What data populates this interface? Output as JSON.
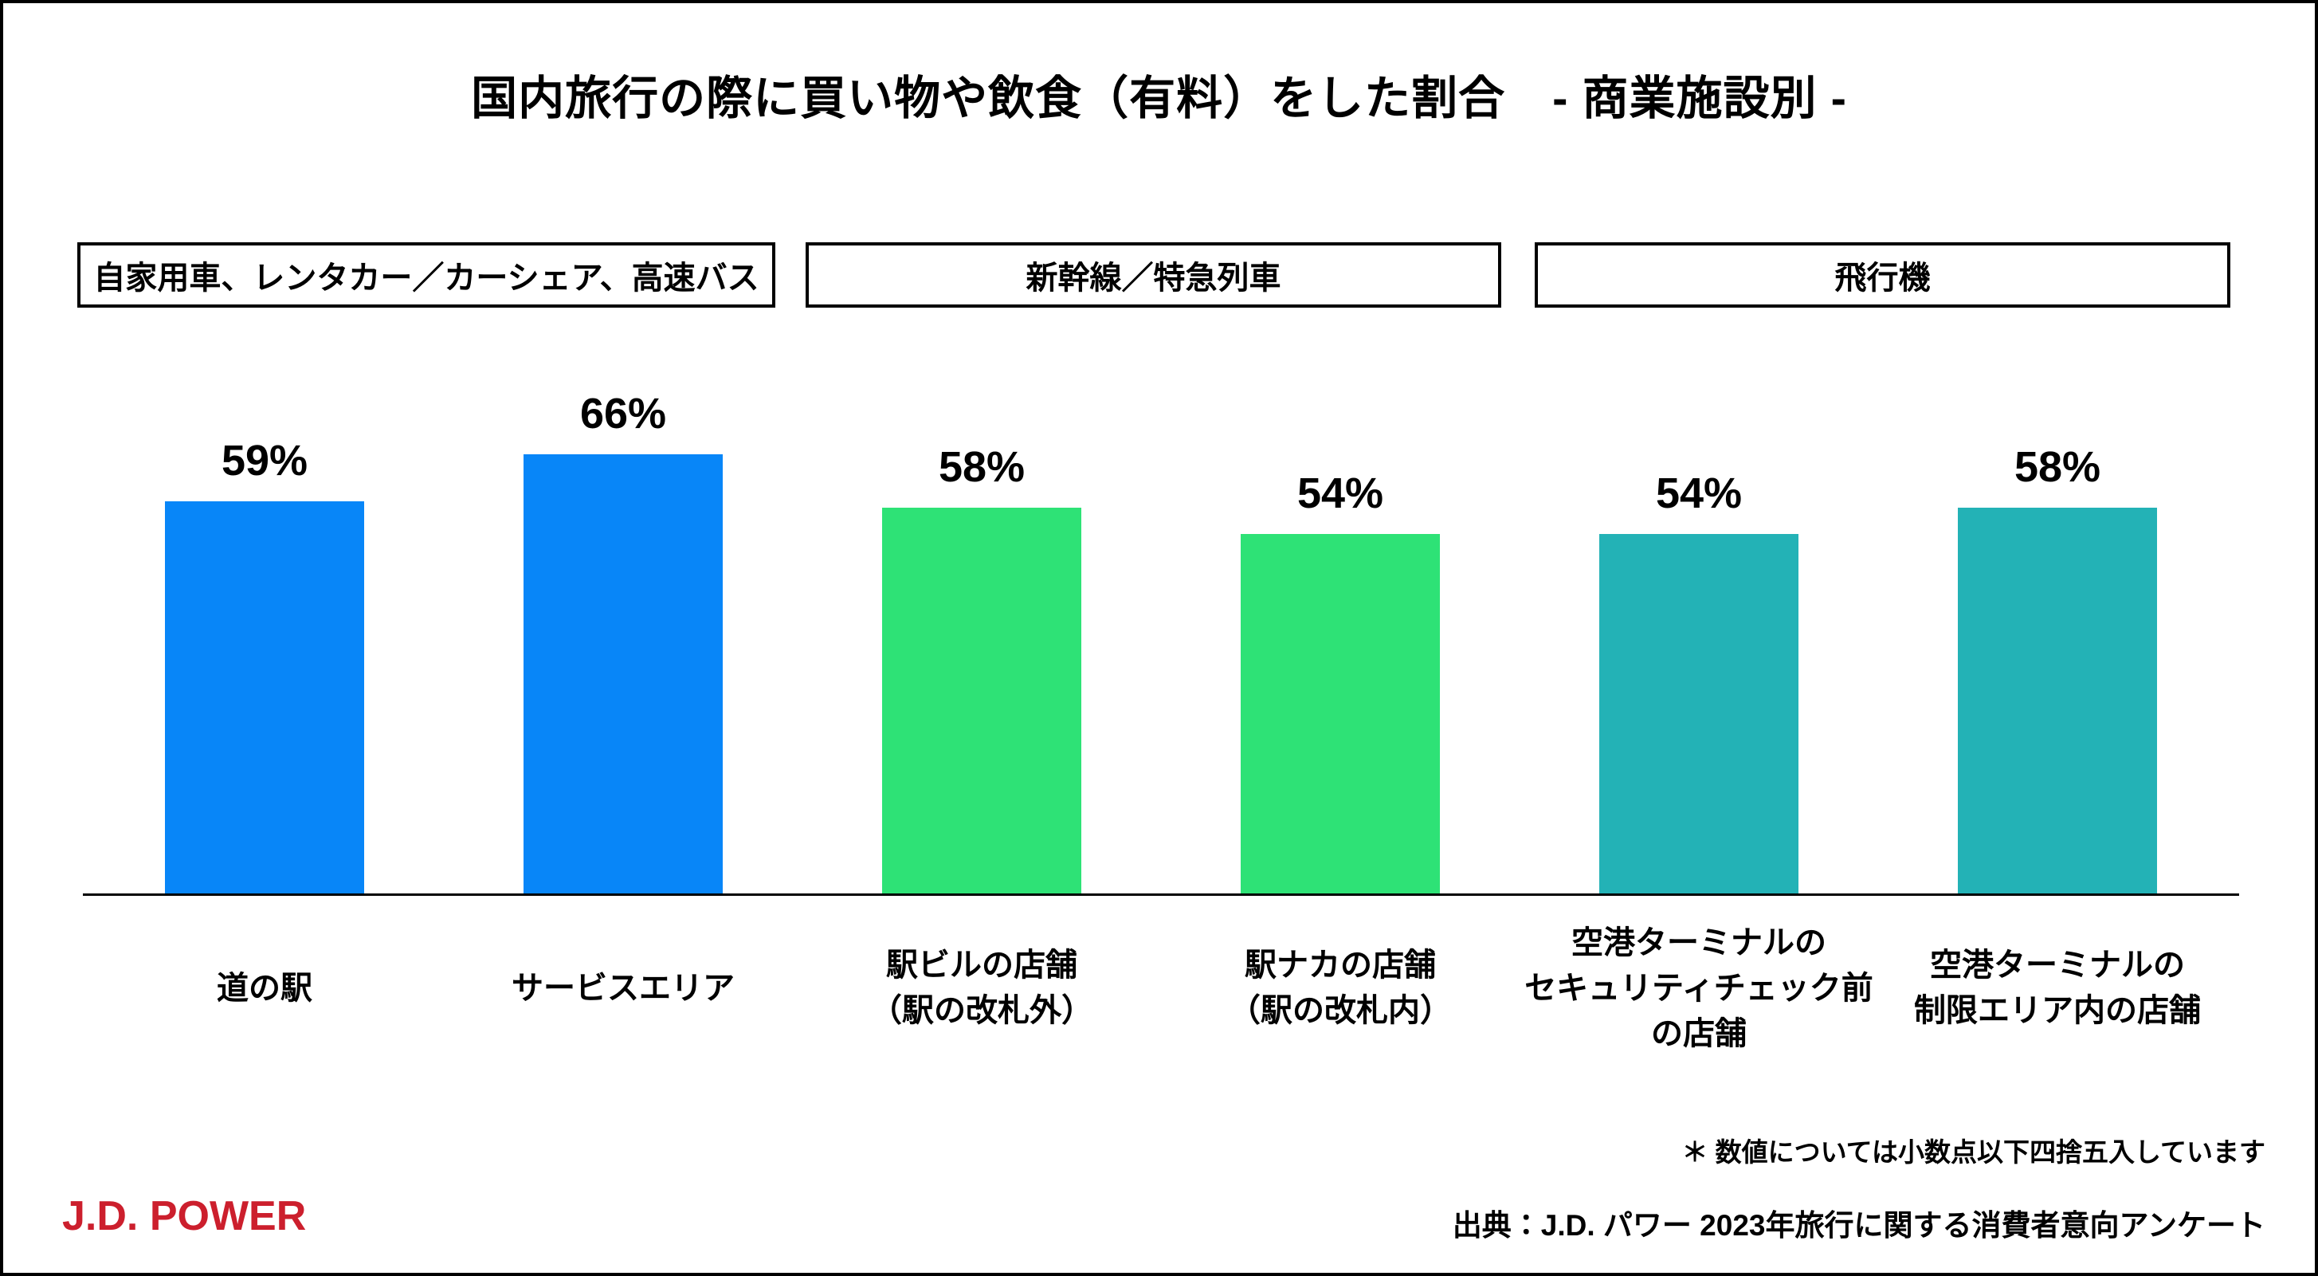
{
  "page": {
    "title": "国内旅行の際に買い物や飲食（有料）をした割合　- 商業施設別 -",
    "footnote": "＊ 数値については小数点以下四捨五入しています",
    "source": "出典：J.D. パワー 2023年旅行に関する消費者意向アンケート",
    "logo_text": "J.D. POWER",
    "logo_color": "#CC1F2D"
  },
  "chart_data": {
    "type": "bar",
    "title": "国内旅行の際に買い物や飲食（有料）をした割合　- 商業施設別 -",
    "value_suffix": "%",
    "value_labels_visible": true,
    "y_axis_visible": false,
    "baseline_visible": true,
    "grid": false,
    "implied_value_range": [
      0,
      100
    ],
    "pixels_per_percent": 8.38,
    "groups": [
      {
        "label": "自家用車、レンタカー／カーシェア、高速バス",
        "color": "#0886F8",
        "bars": [
          {
            "category_lines": [
              "道の駅"
            ],
            "value": 59
          },
          {
            "category_lines": [
              "サービスエリア"
            ],
            "value": 66
          }
        ]
      },
      {
        "label": "新幹線／特急列車",
        "color": "#2EE276",
        "bars": [
          {
            "category_lines": [
              "駅ビルの店舗",
              "（駅の改札外）"
            ],
            "value": 58
          },
          {
            "category_lines": [
              "駅ナカの店舗",
              "（駅の改札内）"
            ],
            "value": 54
          }
        ]
      },
      {
        "label": "飛行機",
        "color": "#23B2B6",
        "bars": [
          {
            "category_lines": [
              "空港ターミナルの",
              "セキュリティチェック前",
              "の店舗"
            ],
            "value": 54
          },
          {
            "category_lines": [
              "空港ターミナルの",
              "制限エリア内の店舗"
            ],
            "value": 58
          }
        ]
      }
    ]
  }
}
